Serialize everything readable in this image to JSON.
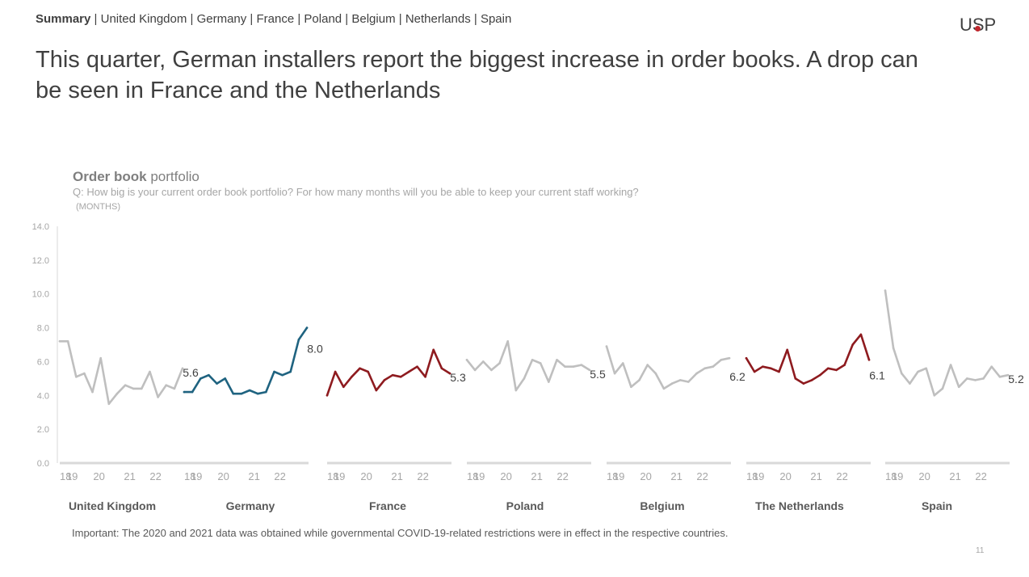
{
  "nav": {
    "items": [
      "Summary",
      "United Kingdom",
      "Germany",
      "France",
      "Poland",
      "Belgium",
      "Netherlands",
      "Spain"
    ],
    "active": "Summary"
  },
  "logo": "USP",
  "headline": "This quarter, German installers report the biggest increase in order books. A drop can be seen in France and the Netherlands",
  "chart_title_bold": "Order book",
  "chart_title_rest": " portfolio",
  "chart_question": "Q: How big is your current order book portfolio? For how many months will you be able to keep your current staff working?",
  "chart_unit": "(MONTHS)",
  "footnote": "Important: The 2020 and 2021 data was obtained while governmental COVID-19-related restrictions were in effect in the respective countries.",
  "page_number": "11",
  "colors": {
    "gray": "#bfbfbf",
    "teal": "#1f6380",
    "red": "#8e1b1f",
    "accent": "#c0272d"
  },
  "chart_data": {
    "type": "line",
    "ylim": [
      0,
      14
    ],
    "y_ticks": [
      "0.0",
      "2.0",
      "4.0",
      "6.0",
      "8.0",
      "10.0",
      "12.0",
      "14.0"
    ],
    "x_tick_labels": [
      "18",
      "19",
      "20",
      "21",
      "22"
    ],
    "panels": [
      {
        "name": "United Kingdom",
        "color": "gray",
        "end_label": "5.6",
        "values": [
          7.2,
          7.2,
          5.1,
          5.3,
          4.2,
          6.2,
          3.5,
          4.1,
          4.6,
          4.4,
          4.4,
          5.4,
          3.9,
          4.6,
          4.4,
          5.6
        ]
      },
      {
        "name": "Germany",
        "color": "teal",
        "end_label": "8.0",
        "values": [
          4.2,
          4.2,
          5.0,
          5.2,
          4.7,
          5.0,
          4.1,
          4.1,
          4.3,
          4.1,
          4.2,
          5.4,
          5.2,
          5.4,
          7.3,
          8.0
        ]
      },
      {
        "name": "France",
        "color": "red",
        "end_label": "5.3",
        "values": [
          4.0,
          5.4,
          4.5,
          5.1,
          5.6,
          5.4,
          4.3,
          4.9,
          5.2,
          5.1,
          5.4,
          5.7,
          5.1,
          6.7,
          5.6,
          5.3
        ]
      },
      {
        "name": "Poland",
        "color": "gray",
        "end_label": "5.5",
        "values": [
          6.1,
          5.5,
          6.0,
          5.5,
          5.9,
          7.2,
          4.3,
          5.0,
          6.1,
          5.9,
          4.8,
          6.1,
          5.7,
          5.7,
          5.8,
          5.5
        ]
      },
      {
        "name": "Belgium",
        "color": "gray",
        "end_label": "6.2",
        "values": [
          6.9,
          5.3,
          5.9,
          4.5,
          4.9,
          5.8,
          5.3,
          4.4,
          4.7,
          4.9,
          4.8,
          5.3,
          5.6,
          5.7,
          6.1,
          6.2
        ]
      },
      {
        "name": "The Netherlands",
        "color": "red",
        "end_label": "6.1",
        "values": [
          6.2,
          5.4,
          5.7,
          5.6,
          5.4,
          6.7,
          5.0,
          4.7,
          4.9,
          5.2,
          5.6,
          5.5,
          5.8,
          7.0,
          7.6,
          6.1
        ]
      },
      {
        "name": "Spain",
        "color": "gray",
        "end_label": "5.2",
        "values": [
          10.2,
          6.8,
          5.3,
          4.7,
          5.4,
          5.6,
          4.0,
          4.4,
          5.8,
          4.5,
          5.0,
          4.9,
          5.0,
          5.7,
          5.1,
          5.2
        ]
      }
    ]
  }
}
